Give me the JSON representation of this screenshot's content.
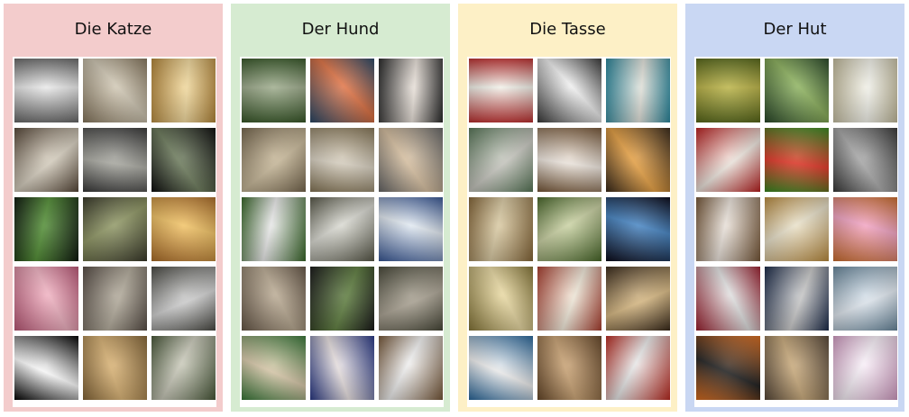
{
  "panels": [
    {
      "title": "Die Katze",
      "bg": "#f3cccc",
      "tiles": [
        {
          "label": "cat-photo",
          "c1": "#6b6b6b",
          "c2": "#e8e8e8"
        },
        {
          "label": "cat-photo",
          "c1": "#8a7a60",
          "c2": "#cfc6b2"
        },
        {
          "label": "cat-photo",
          "c1": "#b98a3a",
          "c2": "#f0d79a"
        },
        {
          "label": "cat-photo",
          "c1": "#5a4a3a",
          "c2": "#d8d0c0"
        },
        {
          "label": "cat-photo",
          "c1": "#3a3a3a",
          "c2": "#a8a8a0"
        },
        {
          "label": "cat-photo",
          "c1": "#0e0e0e",
          "c2": "#6b7a5a"
        },
        {
          "label": "cat-photo",
          "c1": "#0f1a0f",
          "c2": "#4c8a2e"
        },
        {
          "label": "cat-photo",
          "c1": "#3a3a2a",
          "c2": "#8c9460"
        },
        {
          "label": "cat-photo",
          "c1": "#b0702a",
          "c2": "#f0c060"
        },
        {
          "label": "cat-photo",
          "c1": "#c05a7a",
          "c2": "#f0b0c0"
        },
        {
          "label": "cat-photo",
          "c1": "#5a5048",
          "c2": "#b0a898"
        },
        {
          "label": "cat-photo",
          "c1": "#4a4a44",
          "c2": "#d0d0d0"
        },
        {
          "label": "cat-photo",
          "c1": "#000000",
          "c2": "#ffffff"
        },
        {
          "label": "cat-photo",
          "c1": "#8a6a3a",
          "c2": "#d8b070"
        },
        {
          "label": "cat-photo",
          "c1": "#4a5a3a",
          "c2": "#c8c8b8"
        }
      ]
    },
    {
      "title": "Der Hund",
      "bg": "#d6ebd1",
      "tiles": [
        {
          "label": "dog-photo",
          "c1": "#3a5a2a",
          "c2": "#9aa888"
        },
        {
          "label": "dog-photo",
          "c1": "#2a4a6a",
          "c2": "#e07040"
        },
        {
          "label": "dog-photo",
          "c1": "#2a2a2a",
          "c2": "#e8e0d8"
        },
        {
          "label": "dog-photo",
          "c1": "#7a6a50",
          "c2": "#c8b898"
        },
        {
          "label": "dog-photo",
          "c1": "#8a7a5a",
          "c2": "#d8d0c0"
        },
        {
          "label": "dog-photo",
          "c1": "#6a6a6a",
          "c2": "#d8c0a0"
        },
        {
          "label": "dog-photo",
          "c1": "#3a6a2a",
          "c2": "#e8e8e8"
        },
        {
          "label": "dog-photo",
          "c1": "#5a5a4a",
          "c2": "#d8d8d0"
        },
        {
          "label": "dog-photo",
          "c1": "#3a5a9a",
          "c2": "#e0e8f0"
        },
        {
          "label": "dog-photo",
          "c1": "#6a5a4a",
          "c2": "#b8a890"
        },
        {
          "label": "dog-photo",
          "c1": "#1a1a1a",
          "c2": "#5a7a3a"
        },
        {
          "label": "dog-photo",
          "c1": "#4a4a3a",
          "c2": "#a8a090"
        },
        {
          "label": "dog-photo",
          "c1": "#3a7a3a",
          "c2": "#d8c8a8"
        },
        {
          "label": "dog-photo",
          "c1": "#2a3a8a",
          "c2": "#e8e0e0"
        },
        {
          "label": "dog-photo",
          "c1": "#7a5a3a",
          "c2": "#f0f0f0"
        }
      ]
    },
    {
      "title": "Die Tasse",
      "bg": "#fdf0c6",
      "tiles": [
        {
          "label": "cup-photo",
          "c1": "#c03030",
          "c2": "#f0f0e8"
        },
        {
          "label": "cup-photo",
          "c1": "#3a3a3a",
          "c2": "#f0f0f0"
        },
        {
          "label": "cup-photo",
          "c1": "#2a8aa0",
          "c2": "#e0e0d8"
        },
        {
          "label": "cup-photo",
          "c1": "#5a7a5a",
          "c2": "#c8c8c0"
        },
        {
          "label": "cup-photo",
          "c1": "#7a5a3a",
          "c2": "#f0e8e0"
        },
        {
          "label": "cup-photo",
          "c1": "#3a2a1a",
          "c2": "#e8a040"
        },
        {
          "label": "cup-photo",
          "c1": "#8a6a3a",
          "c2": "#d8c8a0"
        },
        {
          "label": "cup-photo",
          "c1": "#4a6a2a",
          "c2": "#c8d0a0"
        },
        {
          "label": "cup-photo",
          "c1": "#0a0a1a",
          "c2": "#4080c0"
        },
        {
          "label": "cup-photo",
          "c1": "#8a7a3a",
          "c2": "#e8d8a0"
        },
        {
          "label": "cup-photo",
          "c1": "#b04030",
          "c2": "#f0e8d8"
        },
        {
          "label": "cup-photo",
          "c1": "#3a2a1a",
          "c2": "#d8b880"
        },
        {
          "label": "cup-photo",
          "c1": "#2a6aa0",
          "c2": "#f0f0f0"
        },
        {
          "label": "cup-photo",
          "c1": "#6a4a2a",
          "c2": "#c8a070"
        },
        {
          "label": "cup-photo",
          "c1": "#c02a20",
          "c2": "#e8e8e8"
        }
      ]
    },
    {
      "title": "Der Hut",
      "bg": "#c9d7f3",
      "tiles": [
        {
          "label": "hat-photo",
          "c1": "#5a6a1a",
          "c2": "#b8b040"
        },
        {
          "label": "hat-photo",
          "c1": "#2a4a2a",
          "c2": "#8ab05a"
        },
        {
          "label": "hat-photo",
          "c1": "#c8c0a0",
          "c2": "#f0f0e8"
        },
        {
          "label": "hat-photo",
          "c1": "#c02020",
          "c2": "#f0e8e0"
        },
        {
          "label": "hat-photo",
          "c1": "#3a8a20",
          "c2": "#e03020"
        },
        {
          "label": "hat-photo",
          "c1": "#3a3a3a",
          "c2": "#a8a8a8"
        },
        {
          "label": "hat-photo",
          "c1": "#7a5a3a",
          "c2": "#e8e0d8"
        },
        {
          "label": "hat-photo",
          "c1": "#c09040",
          "c2": "#e8e0c8"
        },
        {
          "label": "hat-photo",
          "c1": "#d07030",
          "c2": "#f0a0c0"
        },
        {
          "label": "hat-photo",
          "c1": "#a02030",
          "c2": "#e0e0e0"
        },
        {
          "label": "hat-photo",
          "c1": "#1a2a4a",
          "c2": "#c8c8c8"
        },
        {
          "label": "hat-photo",
          "c1": "#6a8aa0",
          "c2": "#e0e8f0"
        },
        {
          "label": "hat-photo",
          "c1": "#e07020",
          "c2": "#1a1a1a"
        },
        {
          "label": "hat-photo",
          "c1": "#5a4a3a",
          "c2": "#c8a878"
        },
        {
          "label": "hat-photo",
          "c1": "#d8a0c8",
          "c2": "#f8f0f8"
        }
      ]
    }
  ]
}
